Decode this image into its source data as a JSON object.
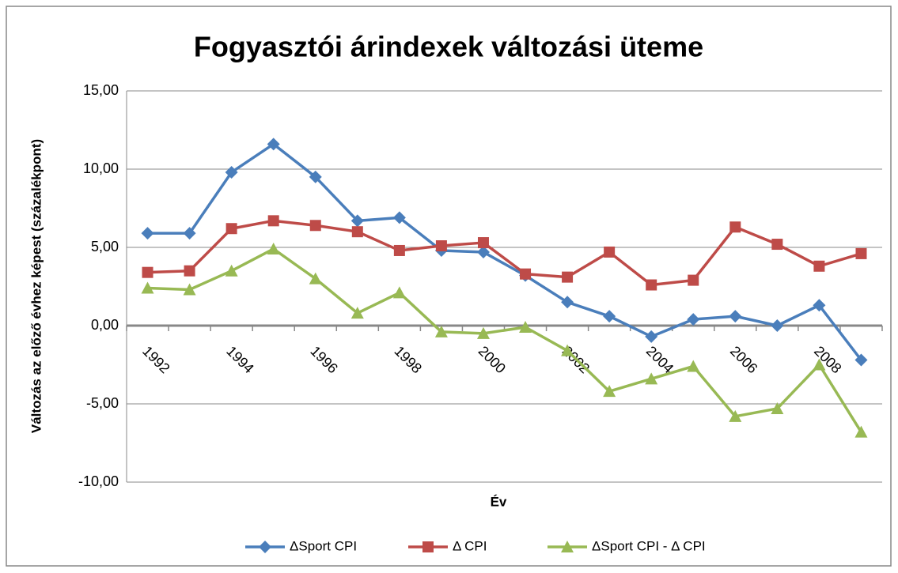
{
  "chart_data": {
    "type": "line",
    "title": "Fogyasztói árindexek változási üteme",
    "x_label": "Év",
    "y_label": "Változás  az előző évhez képest (százalékpont)",
    "categories": [
      "1992",
      null,
      "1994",
      null,
      "1996",
      null,
      "1998",
      null,
      "2000",
      null,
      "2002",
      null,
      "2004",
      null,
      "2006",
      null,
      "2008",
      null
    ],
    "series": [
      {
        "name": "ΔSport CPI",
        "color": "#4a7ebb",
        "marker": "diamond",
        "values": [
          5.9,
          5.9,
          9.8,
          11.6,
          9.5,
          6.7,
          6.9,
          4.8,
          4.7,
          3.2,
          1.5,
          0.6,
          -0.7,
          0.4,
          0.6,
          0.0,
          1.3,
          -2.2
        ]
      },
      {
        "name": "Δ CPI",
        "color": "#be4b48",
        "marker": "square",
        "values": [
          3.4,
          3.5,
          6.2,
          6.7,
          6.4,
          6.0,
          4.8,
          5.1,
          5.3,
          3.3,
          3.1,
          4.7,
          2.6,
          2.9,
          6.3,
          5.2,
          3.8,
          4.6
        ]
      },
      {
        "name": "ΔSport CPI - Δ CPI",
        "color": "#98b954",
        "marker": "triangle",
        "values": [
          2.4,
          2.3,
          3.5,
          4.9,
          3.0,
          0.8,
          2.1,
          -0.4,
          -0.5,
          -0.1,
          -1.6,
          -4.2,
          -3.4,
          -2.6,
          -5.8,
          -5.3,
          -2.5,
          -6.8
        ]
      }
    ],
    "ylim": [
      -10,
      15
    ],
    "yticks": [
      {
        "value": -10,
        "label": "-10,00"
      },
      {
        "value": -5,
        "label": "-5,00"
      },
      {
        "value": 0,
        "label": "0,00"
      },
      {
        "value": 5,
        "label": "5,00"
      },
      {
        "value": 10,
        "label": "10,00"
      },
      {
        "value": 15,
        "label": "15,00"
      }
    ],
    "grid": true,
    "legend": "bottom"
  }
}
